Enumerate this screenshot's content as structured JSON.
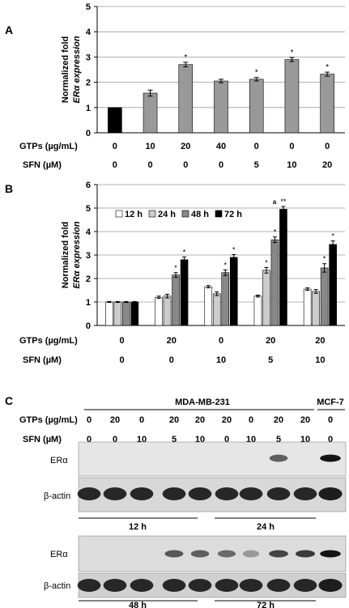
{
  "chart_data": [
    {
      "panel": "A",
      "type": "bar",
      "ylabel_line1": "Normalized fold",
      "ylabel_line2": "ERα expression",
      "ylim": [
        0,
        5
      ],
      "yticks": [
        0,
        1,
        2,
        3,
        4,
        5
      ],
      "row_labels": [
        "GTPs (µg/mL)",
        "SFN  (µM)"
      ],
      "categories_gtps": [
        "0",
        "10",
        "20",
        "40",
        "0",
        "0",
        "0"
      ],
      "categories_sfn": [
        "0",
        "0",
        "0",
        "0",
        "5",
        "10",
        "20"
      ],
      "values": [
        1.0,
        1.57,
        2.7,
        2.05,
        2.12,
        2.9,
        2.32
      ],
      "errors": [
        0,
        0.12,
        0.09,
        0.07,
        0.07,
        0.08,
        0.08
      ],
      "significance": [
        "",
        "",
        "*",
        "",
        "*",
        "*",
        "*"
      ],
      "colors": [
        "#000000",
        "#999999",
        "#999999",
        "#999999",
        "#999999",
        "#999999",
        "#999999"
      ],
      "grid": true
    },
    {
      "panel": "B",
      "type": "bar",
      "ylabel_line1": "Normalized fold",
      "ylabel_line2": "ERα expression",
      "ylim": [
        0,
        6
      ],
      "yticks": [
        0,
        1,
        2,
        3,
        4,
        5,
        6
      ],
      "row_labels": [
        "GTPs (µg/mL)",
        "SFN  (µM)"
      ],
      "categories_gtps": [
        "0",
        "20",
        "0",
        "20",
        "20"
      ],
      "categories_sfn": [
        "0",
        "0",
        "10",
        "5",
        "10"
      ],
      "legend_position": "top-left",
      "series": [
        {
          "name": "12 h",
          "color": "#ffffff",
          "values": [
            1.0,
            1.2,
            1.65,
            1.25,
            1.55
          ],
          "errors": [
            0.02,
            0.05,
            0.05,
            0.04,
            0.05
          ],
          "significance": [
            "",
            "",
            "",
            "",
            ""
          ]
        },
        {
          "name": "24 h",
          "color": "#cccccc",
          "values": [
            1.0,
            1.25,
            1.35,
            2.35,
            1.45
          ],
          "errors": [
            0.02,
            0.08,
            0.08,
            0.12,
            0.08
          ],
          "significance": [
            "",
            "",
            "",
            "*",
            ""
          ]
        },
        {
          "name": "48 h",
          "color": "#888888",
          "values": [
            1.0,
            2.15,
            2.25,
            3.65,
            2.45
          ],
          "errors": [
            0.02,
            0.1,
            0.12,
            0.12,
            0.18
          ],
          "significance": [
            "",
            "*",
            "*",
            "*",
            "*"
          ]
        },
        {
          "name": "72 h",
          "color": "#000000",
          "values": [
            1.0,
            2.8,
            2.9,
            4.95,
            3.45
          ],
          "errors": [
            0.02,
            0.12,
            0.12,
            0.12,
            0.15
          ],
          "significance": [
            "",
            "*",
            "*",
            "**",
            "*"
          ]
        }
      ],
      "extra_annotation": "a",
      "grid": true
    }
  ],
  "panel_labels": {
    "a": "A",
    "b": "B",
    "c": "C"
  },
  "blot": {
    "cell_line_main": "MDA-MB-231",
    "cell_line_ref": "MCF-7",
    "row_labels": [
      "GTPs (µg/mL)",
      "SFN  (µM)"
    ],
    "gtps": [
      "0",
      "20",
      "0",
      "20",
      "20",
      "20",
      "0",
      "20",
      "20",
      "0"
    ],
    "sfn": [
      "0",
      "0",
      "10",
      "5",
      "10",
      "0",
      "10",
      "5",
      "10",
      "0"
    ],
    "era_label": "ERα",
    "actin_label": "β-actin",
    "time_12": "12 h",
    "time_24": "24 h",
    "time_48": "48 h",
    "time_72": "72 h",
    "era_top_intensity": [
      0,
      0,
      0,
      0,
      0,
      0,
      0,
      0.55,
      0,
      0.95
    ],
    "era_bottom_intensity": [
      0,
      0,
      0,
      0.6,
      0.55,
      0.5,
      0.25,
      0.7,
      0.75,
      0.95
    ]
  }
}
